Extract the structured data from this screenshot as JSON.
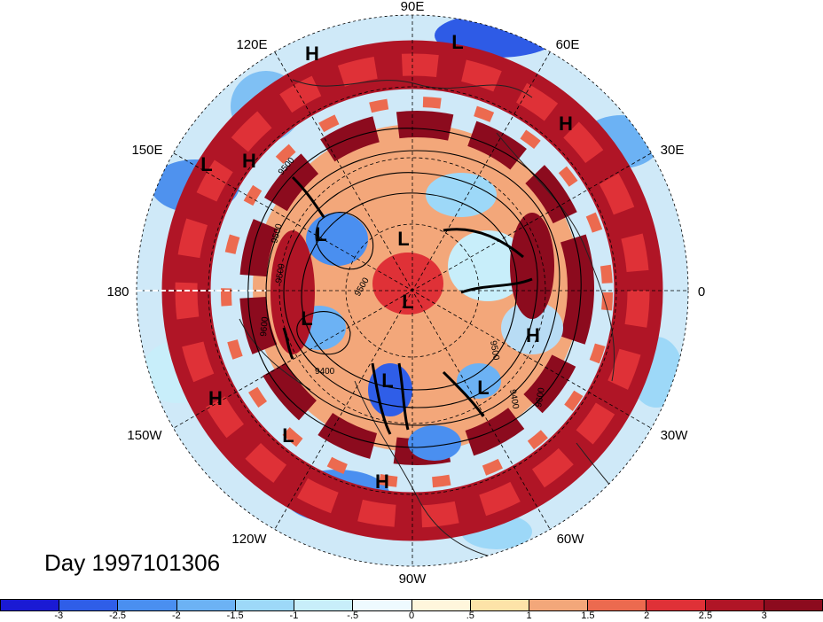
{
  "title": "Day 1997101306",
  "longitude_labels": [
    "90E",
    "60E",
    "30E",
    "0",
    "30W",
    "60W",
    "90W",
    "120W",
    "150W",
    "180",
    "150E",
    "120E"
  ],
  "pressure_systems": [
    {
      "type": "H"
    },
    {
      "type": "L"
    },
    {
      "type": "H"
    },
    {
      "type": "L"
    },
    {
      "type": "H"
    },
    {
      "type": "L"
    },
    {
      "type": "L"
    },
    {
      "type": "L"
    },
    {
      "type": "L"
    },
    {
      "type": "H"
    },
    {
      "type": "L"
    },
    {
      "type": "L"
    },
    {
      "type": "H"
    },
    {
      "type": "L"
    },
    {
      "type": "H"
    }
  ],
  "contour_labels": [
    "9500",
    "9500",
    "9500",
    "9500",
    "9400",
    "9500",
    "9400",
    "9600",
    "9600"
  ],
  "colorbar": {
    "tick_labels": [
      "-3",
      "-2.5",
      "-2",
      "-1.5",
      "-1",
      "-.5",
      "0",
      ".5",
      "1",
      "1.5",
      "2",
      "2.5",
      "3"
    ],
    "colors": [
      "#1a1ad4",
      "#2f5ee8",
      "#4a8ff0",
      "#6cb2f4",
      "#9dd8f8",
      "#c8eefa",
      "#eefaff",
      "#fff6dc",
      "#fde3a8",
      "#f3a77a",
      "#ec6a4f",
      "#df3137",
      "#b01526",
      "#8c0b1e"
    ]
  }
}
